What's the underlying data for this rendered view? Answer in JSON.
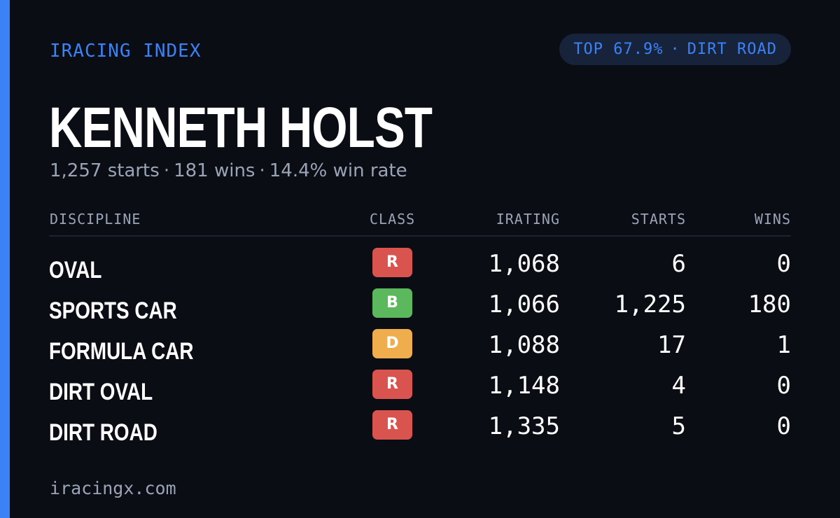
{
  "brand": "IRACING INDEX",
  "badge": {
    "rank": "TOP 67.9%",
    "separator": "·",
    "discipline": "DIRT ROAD"
  },
  "driver": {
    "name": "KENNETH HOLST"
  },
  "summary": {
    "starts": "1,257 starts",
    "wins": "181 wins",
    "win_rate": "14.4% win rate",
    "separator": "·"
  },
  "table": {
    "headers": {
      "discipline": "DISCIPLINE",
      "class": "CLASS",
      "irating": "IRATING",
      "starts": "STARTS",
      "wins": "WINS"
    },
    "rows": [
      {
        "discipline": "OVAL",
        "class": "R",
        "class_color": "#d9534f",
        "irating": "1,068",
        "starts": "6",
        "wins": "0"
      },
      {
        "discipline": "SPORTS CAR",
        "class": "B",
        "class_color": "#5cb85c",
        "irating": "1,066",
        "starts": "1,225",
        "wins": "180"
      },
      {
        "discipline": "FORMULA CAR",
        "class": "D",
        "class_color": "#f0ad4e",
        "irating": "1,088",
        "starts": "17",
        "wins": "1"
      },
      {
        "discipline": "DIRT OVAL",
        "class": "R",
        "class_color": "#d9534f",
        "irating": "1,148",
        "starts": "4",
        "wins": "0"
      },
      {
        "discipline": "DIRT ROAD",
        "class": "R",
        "class_color": "#d9534f",
        "irating": "1,335",
        "starts": "5",
        "wins": "0"
      }
    ]
  },
  "footer": "iracingx.com",
  "colors": {
    "accent": "#3b82f6",
    "background": "#0a0d14",
    "badge_background": "#17233b",
    "muted_text": "#9aa4b6"
  }
}
